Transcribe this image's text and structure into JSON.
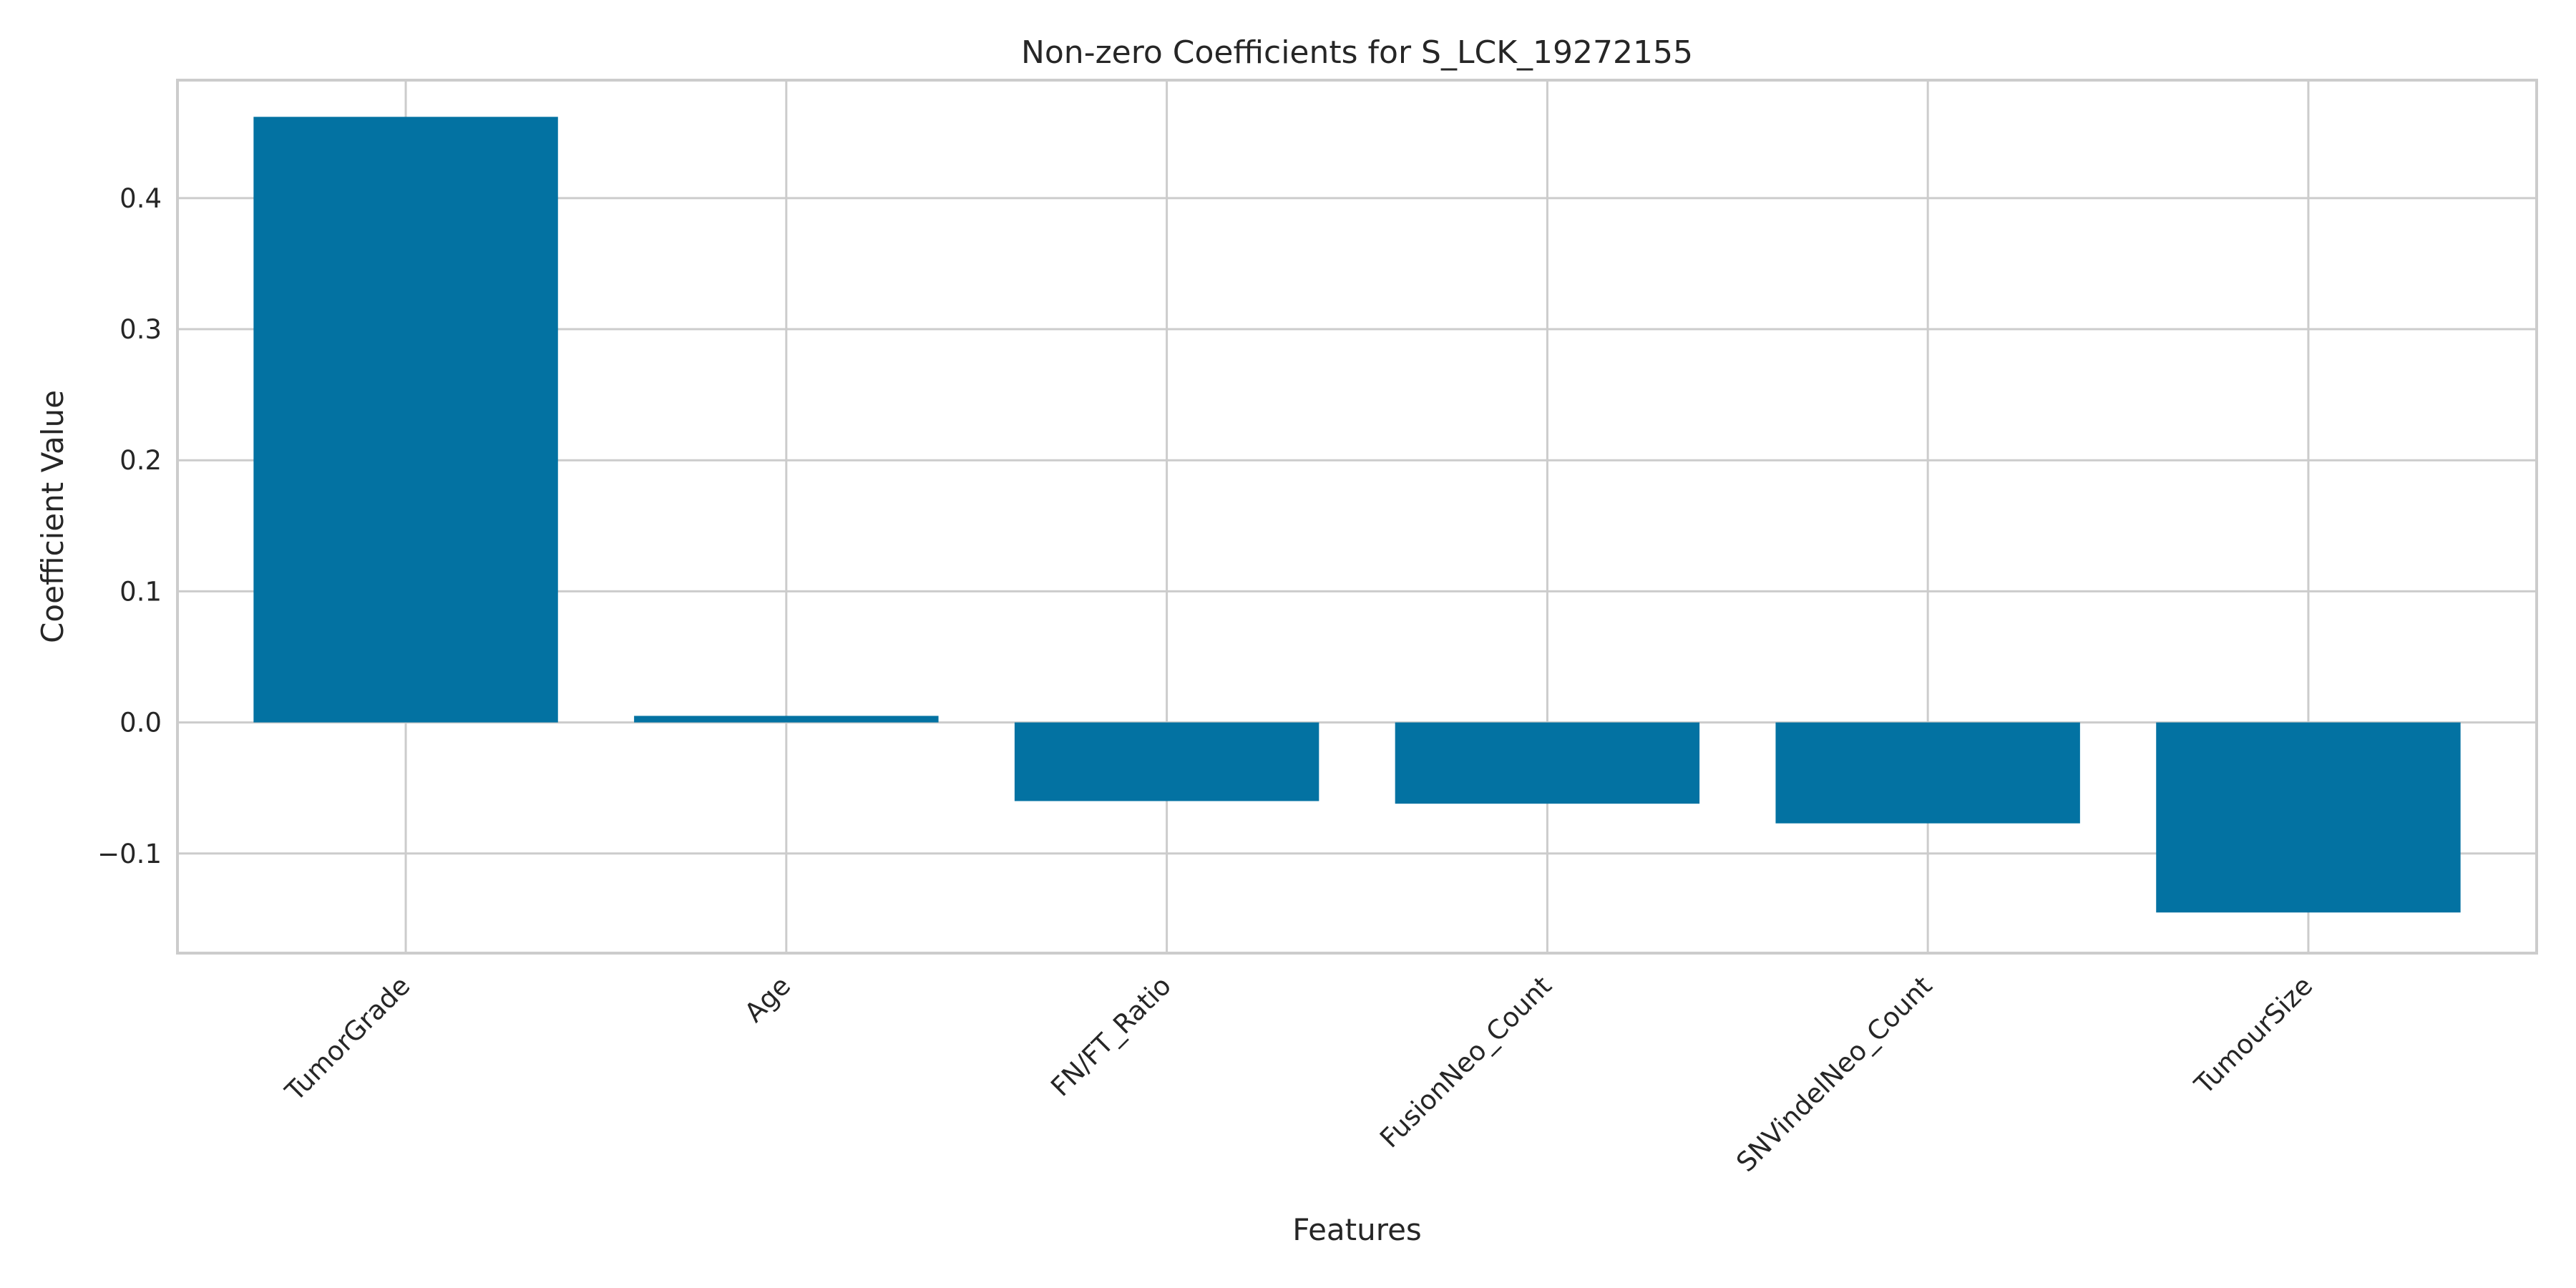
{
  "chart_data": {
    "type": "bar",
    "title": "Non-zero Coefficients for S_LCK_19272155",
    "xlabel": "Features",
    "ylabel": "Coefficient Value",
    "categories": [
      "TumorGrade",
      "Age",
      "FN/FT_Ratio",
      "FusionNeo_Count",
      "SNVindelNeo_Count",
      "TumourSize"
    ],
    "values": [
      0.462,
      0.005,
      -0.06,
      -0.062,
      -0.077,
      -0.145
    ],
    "ylim": [
      -0.176,
      0.49
    ],
    "yticks": [
      -0.1,
      0.0,
      0.1,
      0.2,
      0.3,
      0.4
    ],
    "ytick_labels": [
      "−0.1",
      "0.0",
      "0.1",
      "0.2",
      "0.3",
      "0.4"
    ],
    "grid": true,
    "bar_color": "#0372a2"
  }
}
